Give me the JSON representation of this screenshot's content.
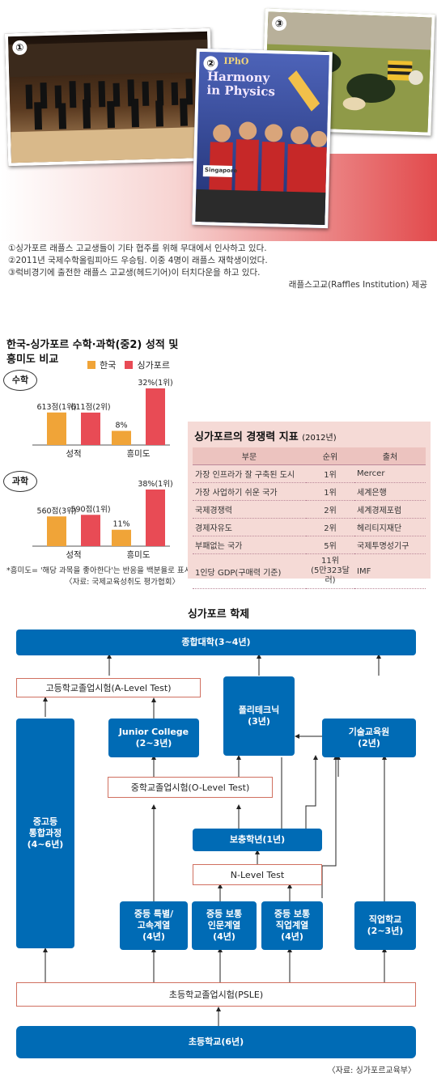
{
  "photos": {
    "items": [
      {
        "number": "①"
      },
      {
        "number": "②",
        "banner_line1": "IPhO",
        "banner_line2": "Harmony",
        "banner_line3": "in Physics",
        "flag_text": "Singapore"
      },
      {
        "number": "③"
      }
    ],
    "captions": [
      "①싱가포르 래플스 고교생들이 기타 협주를 위해 무대에서 인사하고 있다.",
      "②2011년 국제수학올림피아드 우승팀. 이중 4명이 래플스 재학생이었다.",
      "③럭비경기에 출전한 래플스 고교생(헤드기어)이 터치다운을 하고 있다."
    ],
    "credit": "래플스고교(Raffles Institution) 제공"
  },
  "comparison": {
    "title_line1": "한국-싱가포르 수학·과학(중2) 성적 및",
    "title_line2": "흥미도 비교",
    "legend": [
      {
        "label": "한국"
      },
      {
        "label": "싱가포르"
      }
    ],
    "footnote": "*흥미도= '해당 과목을 좋아한다'는 반응을 백분율로 표시",
    "source": "〈자료: 국제교육성취도 평가협회〉"
  },
  "chart_data": [
    {
      "type": "bar",
      "title": "수학",
      "categories": [
        "성적",
        "흥미도"
      ],
      "series": [
        {
          "name": "한국",
          "values": [
            613,
            8
          ],
          "labels": [
            "613점(1위)",
            "8%"
          ]
        },
        {
          "name": "싱가포르",
          "values": [
            611,
            32
          ],
          "labels": [
            "611점(2위)",
            "32%(1위)"
          ]
        }
      ]
    },
    {
      "type": "bar",
      "title": "과학",
      "categories": [
        "성적",
        "흥미도"
      ],
      "series": [
        {
          "name": "한국",
          "values": [
            560,
            11
          ],
          "labels": [
            "560점(3위)",
            "11%"
          ]
        },
        {
          "name": "싱가포르",
          "values": [
            590,
            38
          ],
          "labels": [
            "590점(1위)",
            "38%(1위)"
          ]
        }
      ]
    }
  ],
  "colors": {
    "korea": "#f0a438",
    "singapore": "#e84b55",
    "navy": "#006bb5",
    "pink_box": "#f5dad6"
  },
  "competitiveness": {
    "title": "싱가포르의 경쟁력 지표",
    "year": "(2012년)",
    "headers": [
      "부문",
      "순위",
      "출처"
    ],
    "rows": [
      {
        "category": "가장 인프라가 잘 구축된 도시",
        "rank": "1위",
        "source": "Mercer"
      },
      {
        "category": "가장 사업하기 쉬운 국가",
        "rank": "1위",
        "source": "세계은행"
      },
      {
        "category": "국제경쟁력",
        "rank": "2위",
        "source": "세계경제포럼"
      },
      {
        "category": "경제자유도",
        "rank": "2위",
        "source": "헤리티지재단"
      },
      {
        "category": "부패없는 국가",
        "rank": "5위",
        "source": "국제투명성기구"
      },
      {
        "category": "1인당 GDP(구매력 기준)",
        "rank": "11위",
        "rank_sub": "(5만323달러)",
        "source": "IMF"
      }
    ]
  },
  "school_system": {
    "title": "싱가포르 학제",
    "nodes": {
      "university": "종합대학(3~4년)",
      "a_level": "고등학교졸업시험(A-Level Test)",
      "polytechnic": "폴리테크닉\n(3년)",
      "junior_college": "Junior College\n(2~3년)",
      "technical": "기술교육원\n(2년)",
      "integrated": "중고등\n통합과정\n(4~6년)",
      "o_level": "중학교졸업시험(O-Level Test)",
      "supplement": "보충학년(1년)",
      "n_level": "N-Level Test",
      "special": "중등 특별/\n고속계열\n(4년)",
      "normal_academic": "중등 보통\n인문계열\n(4년)",
      "normal_technical": "중등 보통\n직업계열\n(4년)",
      "vocational": "직업학교\n(2~3년)",
      "psle": "초등학교졸업시험(PSLE)",
      "primary": "초등학교(6년)"
    },
    "source": "〈자료: 싱가포르교육부〉"
  }
}
